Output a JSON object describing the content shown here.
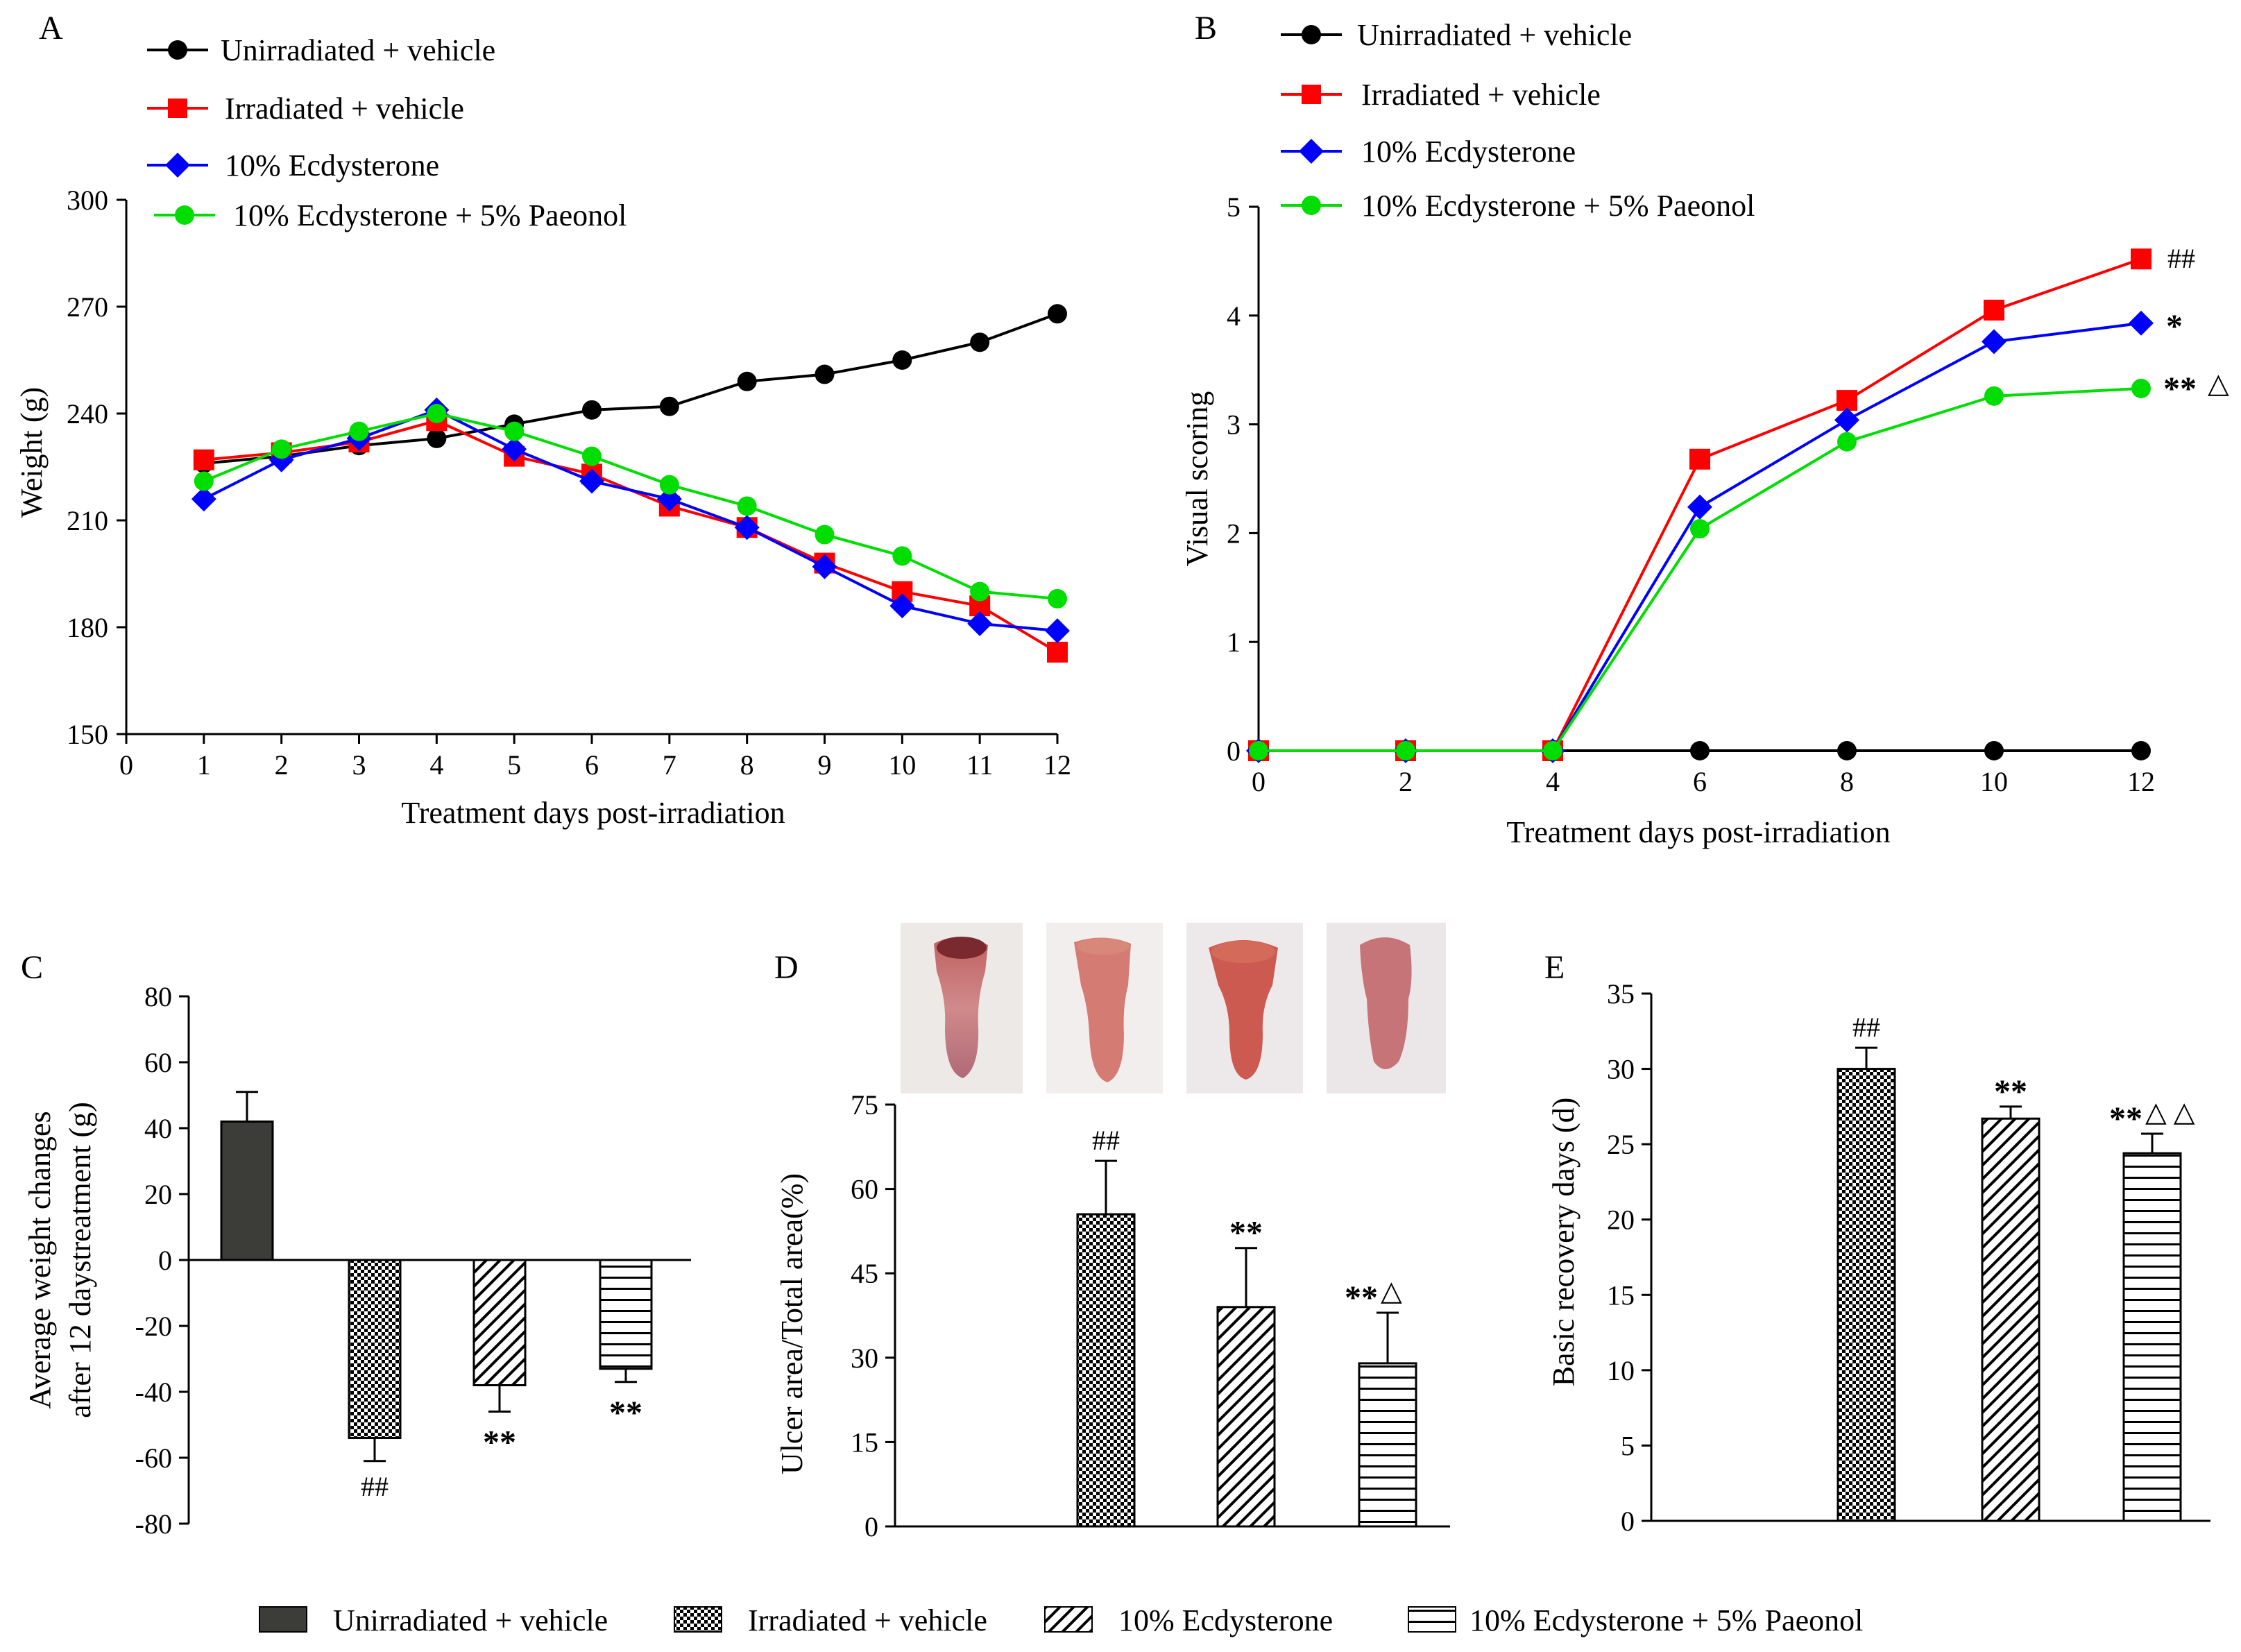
{
  "colors": {
    "unirradiated": "#000000",
    "irradiated": "#ff0000",
    "ecdysterone": "#0000ff",
    "ecdy_paeonol": "#00dd00",
    "dark_bar": "#3c3c38"
  },
  "panels": {
    "A": {
      "letter": "A"
    },
    "B": {
      "letter": "B"
    },
    "C": {
      "letter": "C"
    },
    "D": {
      "letter": "D"
    },
    "E": {
      "letter": "E"
    }
  },
  "legend_top": {
    "unirradiated": "Unirradiated + vehicle",
    "irradiated": "Irradiated  + vehicle",
    "ecdysterone": "10% Ecdysterone",
    "ecdy_paeonol": "10% Ecdysterone + 5% Paeonol"
  },
  "legend_bottom": {
    "unirradiated": "Unirradiated + vehicle",
    "irradiated": "Irradiated + vehicle",
    "ecdysterone": "10% Ecdysterone",
    "ecdy_paeonol": "10% Ecdysterone  + 5% Paeonol"
  },
  "chart_data": [
    {
      "id": "A",
      "type": "line",
      "xlabel": "Treatment days post-irradiation",
      "ylabel": "Weight (g)",
      "xlim": [
        0,
        12
      ],
      "ylim": [
        150,
        300
      ],
      "xticks": [
        "0",
        "1",
        "2",
        "3",
        "4",
        "5",
        "6",
        "7",
        "8",
        "9",
        "10",
        "11",
        "12"
      ],
      "yticks": [
        "150",
        "180",
        "210",
        "240",
        "270",
        "300"
      ],
      "x": [
        1,
        2,
        3,
        4,
        5,
        6,
        7,
        8,
        9,
        10,
        11,
        12
      ],
      "series": [
        {
          "name": "Unirradiated + vehicle",
          "key": "unirradiated",
          "marker": "circle",
          "values": [
            226,
            228,
            231,
            233,
            237,
            241,
            242,
            249,
            251,
            255,
            260,
            268
          ]
        },
        {
          "name": "Irradiated  + vehicle",
          "key": "irradiated",
          "marker": "square",
          "values": [
            227,
            229,
            232,
            238,
            228,
            223,
            214,
            208,
            198,
            190,
            186,
            173
          ]
        },
        {
          "name": "10% Ecdysterone",
          "key": "ecdysterone",
          "marker": "diamond",
          "values": [
            216,
            227,
            233,
            241,
            230,
            221,
            216,
            208,
            197,
            186,
            181,
            179
          ]
        },
        {
          "name": "10% Ecdysterone + 5% Paeonol",
          "key": "ecdy_paeonol",
          "marker": "circle",
          "values": [
            221,
            230,
            235,
            240,
            235,
            228,
            220,
            214,
            206,
            200,
            190,
            188
          ]
        }
      ]
    },
    {
      "id": "B",
      "type": "line",
      "xlabel": "Treatment days post-irradiation",
      "ylabel": "Visual scoring",
      "xlim": [
        0,
        12
      ],
      "ylim": [
        0,
        5
      ],
      "xticks": [
        "0",
        "2",
        "4",
        "6",
        "8",
        "10",
        "12"
      ],
      "yticks": [
        "0",
        "1",
        "2",
        "3",
        "4",
        "5"
      ],
      "x": [
        0,
        2,
        4,
        6,
        8,
        10,
        12
      ],
      "series": [
        {
          "name": "Unirradiated + vehicle",
          "key": "unirradiated",
          "marker": "circle",
          "values": [
            0,
            0,
            0,
            0,
            0,
            0,
            0
          ]
        },
        {
          "name": "Irradiated  + vehicle",
          "key": "irradiated",
          "marker": "square",
          "values": [
            0,
            0,
            0,
            2.68,
            3.22,
            4.05,
            4.52
          ]
        },
        {
          "name": "10% Ecdysterone",
          "key": "ecdysterone",
          "marker": "diamond",
          "values": [
            0,
            0,
            0,
            2.24,
            3.04,
            3.76,
            3.93
          ]
        },
        {
          "name": "10% Ecdysterone + 5% Paeonol",
          "key": "ecdy_paeonol",
          "marker": "circle",
          "values": [
            0,
            0,
            0,
            2.04,
            2.84,
            3.26,
            3.33
          ]
        }
      ],
      "annotations": {
        "irradiated": "##",
        "ecdysterone": "*",
        "ecdy_paeonol": "**",
        "ecdy_paeonol_tri": "△"
      }
    },
    {
      "id": "C",
      "type": "bar",
      "ylabel_line1": "Average weight changes",
      "ylabel_line2": "after 12 daystreatment (g)",
      "ylim": [
        -80,
        80
      ],
      "yticks": [
        "-80",
        "-60",
        "-40",
        "-20",
        "0",
        "20",
        "40",
        "60",
        "80"
      ],
      "categories": [
        "Unirradiated + vehicle",
        "Irradiated + vehicle",
        "10% Ecdysterone",
        "10% Ecdysterone + 5% Paeonol"
      ],
      "values": [
        42,
        -54,
        -38,
        -33
      ],
      "errors": [
        9,
        7,
        8,
        4
      ],
      "annotations": [
        "",
        "##",
        "**",
        "**"
      ]
    },
    {
      "id": "D",
      "type": "bar",
      "ylabel": "Ulcer area/Total area(%)",
      "ylim": [
        0,
        75
      ],
      "yticks": [
        "0",
        "15",
        "30",
        "45",
        "60",
        "75"
      ],
      "categories": [
        "Unirradiated + vehicle",
        "Irradiated + vehicle",
        "10% Ecdysterone",
        "10% Ecdysterone + 5% Paeonol"
      ],
      "values": [
        0,
        55.5,
        39,
        29
      ],
      "errors": [
        0,
        9.5,
        10.5,
        9
      ],
      "annotations": [
        "",
        "##",
        "**",
        "**"
      ],
      "annotations_tri": [
        "",
        "",
        "",
        "△"
      ]
    },
    {
      "id": "E",
      "type": "bar",
      "ylabel": "Basic recovery days (d)",
      "ylim": [
        0,
        35
      ],
      "yticks": [
        "0",
        "5",
        "10",
        "15",
        "20",
        "25",
        "30",
        "35"
      ],
      "categories": [
        "Unirradiated + vehicle",
        "Irradiated + vehicle",
        "10% Ecdysterone",
        "10% Ecdysterone + 5% Paeonol"
      ],
      "values": [
        0,
        30,
        26.7,
        24.4
      ],
      "errors": [
        0,
        1.4,
        0.8,
        1.3
      ],
      "annotations": [
        "",
        "##",
        "**",
        "**"
      ],
      "annotations_tri": [
        "",
        "",
        "",
        "△ △"
      ]
    }
  ]
}
